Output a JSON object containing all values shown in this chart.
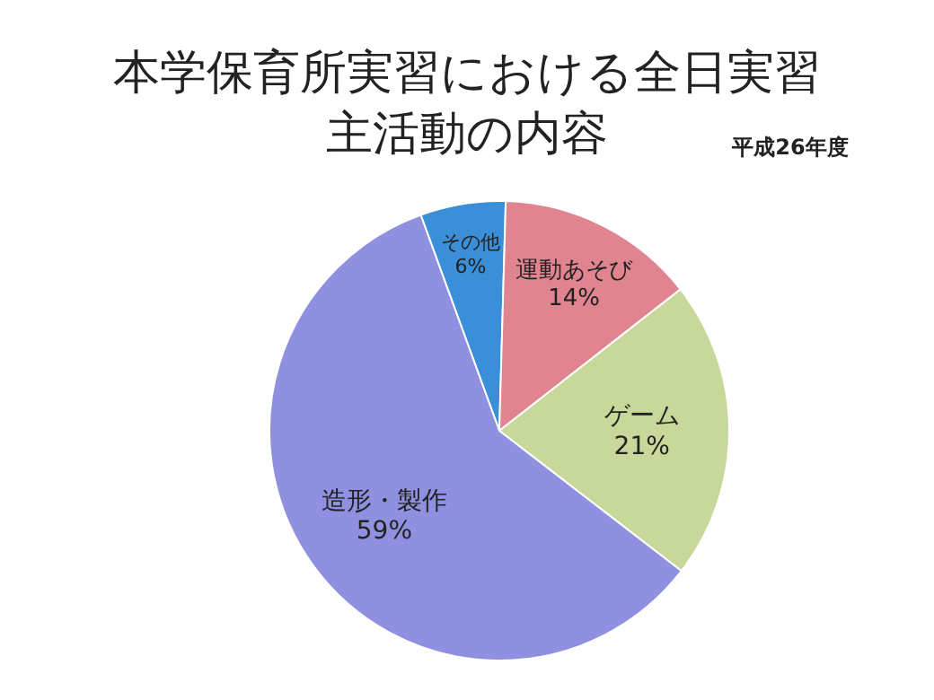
{
  "chart_data": {
    "type": "pie",
    "title": "本学保育所実習における全日実習主活動の内容",
    "subtitle": "平成26年度",
    "categories": [
      "その他",
      "運動あそび",
      "ゲーム",
      "造形・製作"
    ],
    "values": [
      6,
      14,
      21,
      59
    ],
    "colors": [
      "#3a8fd8",
      "#e08590",
      "#c8d89a",
      "#8f90e0"
    ],
    "value_labels": [
      "6%",
      "14%",
      "21%",
      "59%"
    ]
  }
}
